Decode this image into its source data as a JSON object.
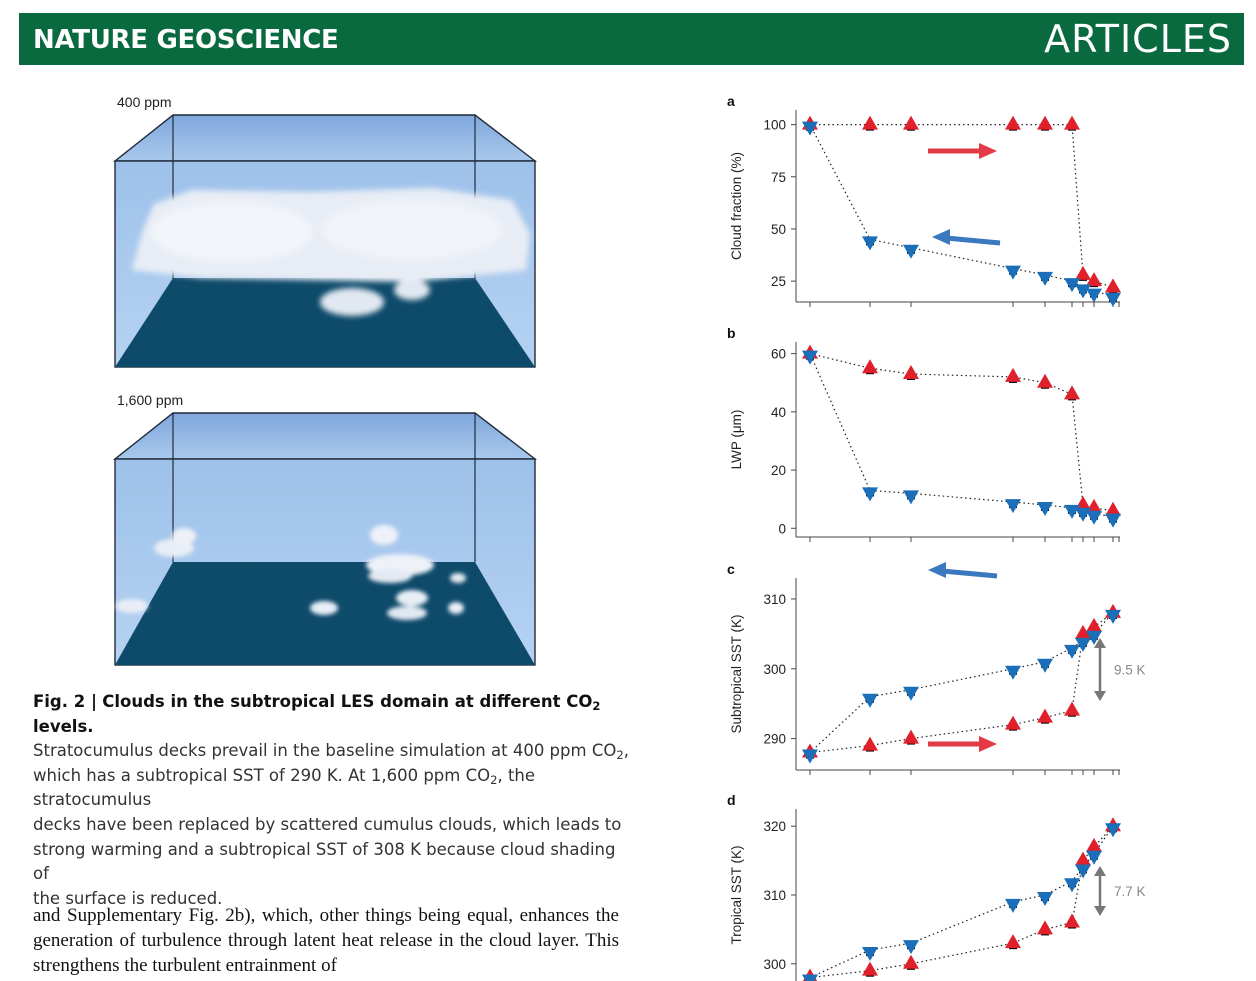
{
  "header": {
    "journal": "NATURE GEOSCIENCE",
    "section": "ARTICLES"
  },
  "figure_left": {
    "panel_top_label": "400 ppm",
    "panel_bottom_label": "1,600 ppm"
  },
  "caption": {
    "fig_label": "Fig. 2 |",
    "title_before_sub": "Clouds in the subtropical LES domain at different CO",
    "title_sub": "2",
    "title_after_sub": " levels.",
    "line1_before_sub": "Stratocumulus decks prevail in the baseline simulation at 400 ppm CO",
    "line1_sub": "2",
    "line1_after_sub": ",",
    "line2_before_sub": "which has a subtropical SST of 290 K. At 1,600 ppm CO",
    "line2_sub": "2",
    "line2_after_sub": ", the stratocumulus",
    "line3": "decks have been replaced by scattered cumulus clouds, which leads to",
    "line4": "strong warming and a subtropical SST of 308 K because cloud shading of",
    "line5": "the surface is reduced."
  },
  "body_text": "and Supplementary Fig. 2b), which, other things being equal, enhances the generation of turbulence through latent heat release in the cloud layer. This strengthens the turbulent entrainment of",
  "colors": {
    "banner": "#0a6a3f",
    "up_branch": "#e0212b",
    "down_branch": "#1a6fb8",
    "sim_marker": "#000000",
    "arrow_red": "#e23b46",
    "arrow_blue": "#3a78c0",
    "span_arrow": "#777777"
  },
  "chart_data": [
    {
      "panel": "a",
      "type": "scatter",
      "ylabel": "Cloud fraction (%)",
      "ylim": [
        15,
        107
      ],
      "yticks": [
        25,
        50,
        75,
        100
      ],
      "x_ticks": 10,
      "up_branch": [
        100,
        100,
        100,
        100,
        100,
        100,
        28,
        25,
        22
      ],
      "down_branch": [
        100,
        45,
        41,
        31,
        28,
        25,
        22,
        20,
        18
      ],
      "annotation_arrows": [
        {
          "color": "red",
          "direction": "right"
        },
        {
          "color": "blue",
          "direction": "left"
        }
      ]
    },
    {
      "panel": "b",
      "type": "scatter",
      "ylabel": "LWP (μm)",
      "ylim": [
        -3,
        64
      ],
      "yticks": [
        0,
        20,
        40,
        60
      ],
      "x_ticks": 10,
      "up_branch": [
        60,
        55,
        53,
        52,
        50,
        46,
        8,
        7,
        6
      ],
      "down_branch": [
        60,
        13,
        12,
        9,
        8,
        7,
        6,
        5,
        4
      ],
      "annotation_arrows": []
    },
    {
      "panel": "c",
      "type": "scatter",
      "ylabel": "Subtropical SST (K)",
      "ylim": [
        285.5,
        313
      ],
      "yticks": [
        290,
        300,
        310
      ],
      "x_ticks": 10,
      "up_branch": [
        288,
        289,
        290,
        292,
        293,
        294,
        305,
        306,
        308
      ],
      "down_branch": [
        288,
        296,
        297,
        300,
        301,
        303,
        304,
        305,
        308
      ],
      "annotation_arrows": [
        {
          "color": "blue",
          "direction": "left"
        },
        {
          "color": "red",
          "direction": "right"
        }
      ],
      "span_label": "9.5 K"
    },
    {
      "panel": "d",
      "type": "scatter",
      "ylabel": "Tropical SST (K)",
      "ylim": [
        297.5,
        322.5
      ],
      "yticks": [
        300,
        310,
        320
      ],
      "x_ticks": 10,
      "up_branch": [
        298,
        299,
        300,
        303,
        305,
        306,
        315,
        317,
        320
      ],
      "down_branch": [
        298,
        302,
        303,
        309,
        310,
        312,
        314,
        316,
        320
      ],
      "annotation_arrows": [],
      "span_label": "7.7 K"
    }
  ]
}
